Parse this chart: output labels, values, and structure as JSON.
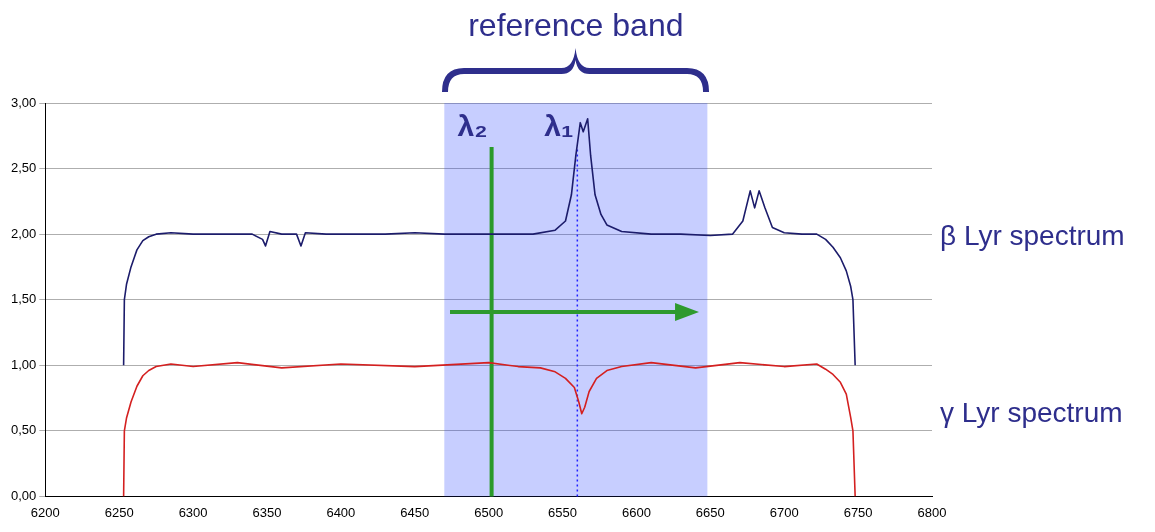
{
  "chart_data": {
    "type": "line",
    "marker": "none",
    "line_style": "solid",
    "grid": "y",
    "legend": false,
    "xlim": [
      6200,
      6800
    ],
    "xticks": [
      6200,
      6250,
      6300,
      6350,
      6400,
      6450,
      6500,
      6550,
      6600,
      6650,
      6700,
      6750,
      6800
    ],
    "ylim": [
      0,
      3
    ],
    "yticks": [
      {
        "value": 0,
        "label": "0,00"
      },
      {
        "value": 0.5,
        "label": "0,50"
      },
      {
        "value": 1,
        "label": "1,00"
      },
      {
        "value": 1.5,
        "label": "1,50"
      },
      {
        "value": 2,
        "label": "2,00"
      },
      {
        "value": 2.5,
        "label": "2,50"
      },
      {
        "value": 3,
        "label": "3,00"
      }
    ],
    "series": [
      {
        "name": "β Lyr spectrum",
        "color": "#1c1c6b",
        "x": [
          6253,
          6253.5,
          6255,
          6258,
          6262,
          6266,
          6270,
          6275,
          6285,
          6300,
          6320,
          6340,
          6347,
          6349,
          6352,
          6360,
          6370,
          6373,
          6376,
          6390,
          6410,
          6430,
          6450,
          6470,
          6490,
          6510,
          6530,
          6545,
          6552,
          6556,
          6559,
          6562,
          6564,
          6567,
          6569,
          6572,
          6576,
          6580,
          6590,
          6610,
          6630,
          6650,
          6665,
          6672,
          6677,
          6680,
          6683,
          6687,
          6692,
          6700,
          6712,
          6722,
          6728,
          6733,
          6738,
          6742,
          6745,
          6746.5,
          6748
        ],
        "values": [
          1.0,
          1.5,
          1.62,
          1.75,
          1.88,
          1.95,
          1.98,
          2.0,
          2.01,
          2.0,
          2.0,
          2.0,
          1.96,
          1.91,
          2.02,
          2.0,
          2.0,
          1.91,
          2.01,
          2.0,
          2.0,
          2.0,
          2.01,
          2.0,
          2.0,
          2.0,
          2.0,
          2.03,
          2.1,
          2.3,
          2.6,
          2.85,
          2.78,
          2.88,
          2.6,
          2.3,
          2.15,
          2.07,
          2.02,
          2.0,
          2.0,
          1.99,
          2.0,
          2.1,
          2.33,
          2.2,
          2.33,
          2.2,
          2.05,
          2.01,
          2.0,
          2.0,
          1.96,
          1.9,
          1.82,
          1.72,
          1.6,
          1.5,
          1.0
        ]
      },
      {
        "name": "γ Lyr spectrum",
        "color": "#d42020",
        "x": [
          6253,
          6253.5,
          6255,
          6258,
          6262,
          6266,
          6270,
          6275,
          6285,
          6300,
          6330,
          6360,
          6400,
          6450,
          6500,
          6520,
          6535,
          6545,
          6552,
          6558,
          6561,
          6563,
          6565,
          6568,
          6573,
          6580,
          6590,
          6610,
          6640,
          6670,
          6700,
          6722,
          6728,
          6733,
          6738,
          6742,
          6745,
          6746.5,
          6748
        ],
        "values": [
          0.0,
          0.5,
          0.6,
          0.72,
          0.84,
          0.92,
          0.96,
          0.99,
          1.01,
          0.99,
          1.02,
          0.98,
          1.01,
          0.99,
          1.02,
          0.99,
          0.98,
          0.95,
          0.9,
          0.83,
          0.72,
          0.63,
          0.68,
          0.8,
          0.9,
          0.96,
          0.99,
          1.02,
          0.98,
          1.02,
          0.99,
          1.01,
          0.97,
          0.93,
          0.87,
          0.78,
          0.6,
          0.5,
          0.0
        ]
      }
    ],
    "bands": [
      {
        "axis": "x",
        "from": 6470,
        "to": 6648,
        "label": "reference band",
        "color": "#1f3cff"
      }
    ],
    "ref_lines": [
      {
        "axis": "x",
        "value": 6560,
        "label": "λ₁",
        "color": "#2020ff",
        "line_style": "dotted"
      },
      {
        "axis": "x",
        "value": 6502,
        "label": "λ₂",
        "color": "#2a9a2a",
        "line_style": "solid"
      }
    ]
  }
}
